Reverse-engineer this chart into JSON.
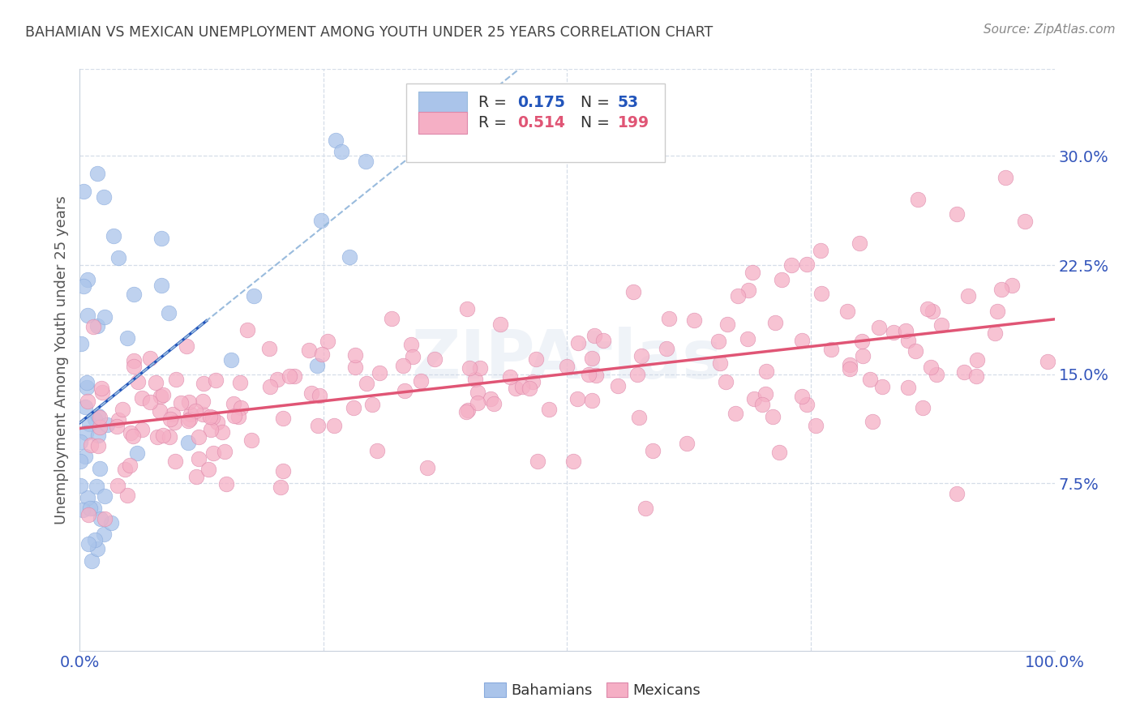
{
  "title": "BAHAMIAN VS MEXICAN UNEMPLOYMENT AMONG YOUTH UNDER 25 YEARS CORRELATION CHART",
  "source": "Source: ZipAtlas.com",
  "ylabel": "Unemployment Among Youth under 25 years",
  "ytick_labels": [
    "7.5%",
    "15.0%",
    "22.5%",
    "30.0%"
  ],
  "ytick_values": [
    0.075,
    0.15,
    0.225,
    0.3
  ],
  "xlim": [
    0.0,
    1.0
  ],
  "ylim": [
    -0.04,
    0.36
  ],
  "bahamian_R": 0.175,
  "bahamian_N": 53,
  "mexican_R": 0.514,
  "mexican_N": 199,
  "bahamian_color": "#aac4ea",
  "mexican_color": "#f5afc5",
  "bahamian_line_color": "#2255bb",
  "mexican_line_color": "#e05575",
  "bahamian_dash_color": "#99bbdd",
  "title_color": "#444444",
  "ytick_color": "#3355bb",
  "xtick_color": "#3355bb",
  "grid_color": "#d5dde8",
  "background_color": "#ffffff",
  "legend_border_color": "#cccccc",
  "legend_text_color": "#333333"
}
